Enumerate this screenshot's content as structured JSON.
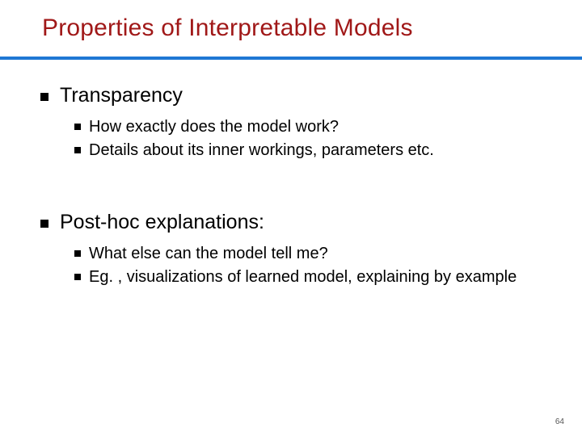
{
  "title": {
    "text": "Properties of Interpretable Models",
    "color": "#a01818",
    "fontsize": 30
  },
  "rule_color": "#1f77d4",
  "bullet_color": "#000000",
  "text_color": "#000000",
  "pagenum_color": "#555555",
  "background_color": "#ffffff",
  "sections": [
    {
      "heading": "Transparency",
      "items": [
        " How exactly does the model work?",
        "Details about its inner workings, parameters etc."
      ]
    },
    {
      "heading": "Post-hoc explanations:",
      "items": [
        "What else can the model tell me?",
        "Eg. , visualizations of learned model, explaining by example"
      ]
    }
  ],
  "page_number": "64",
  "typography": {
    "title_fontsize": 30,
    "top_fontsize": 25,
    "sub_fontsize": 20,
    "pagenum_fontsize": 10,
    "font_family": "Arial"
  }
}
